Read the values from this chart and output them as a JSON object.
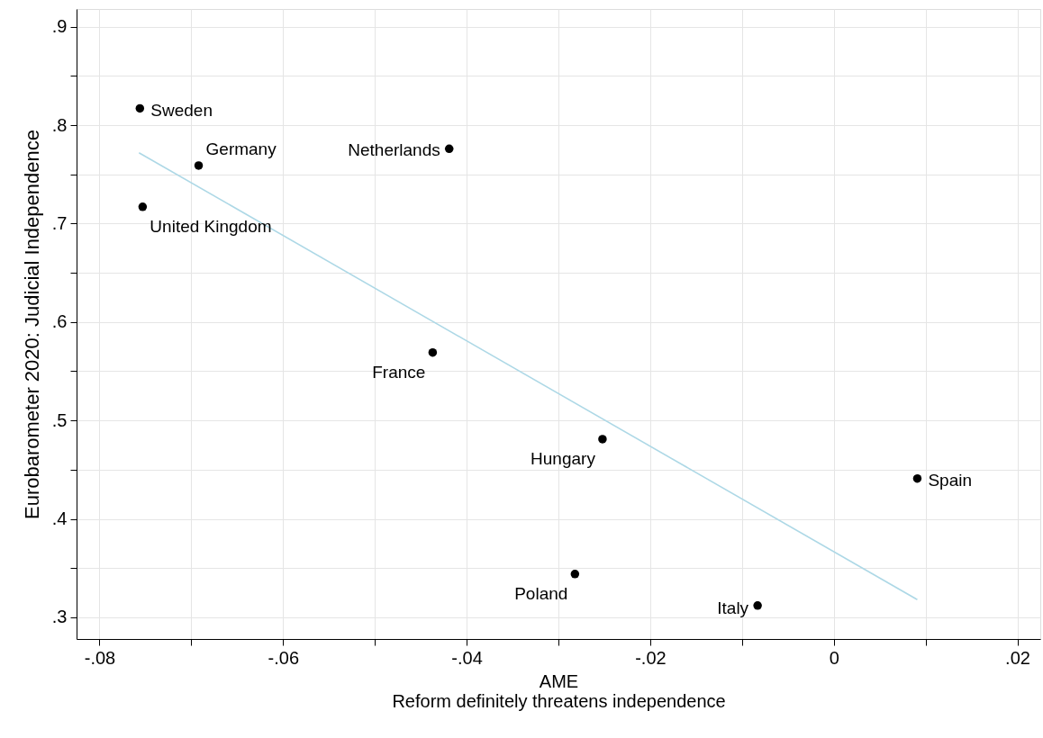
{
  "chart_data": {
    "type": "scatter",
    "xlabel": "AME\nReform definitely threatens independence",
    "ylabel": "Eurobarometer 2020: Judicial Independence",
    "series": [
      {
        "marker": "circle",
        "color": "#000000",
        "x": [
          -0.0756,
          -0.0692,
          -0.0753,
          -0.0419,
          -0.0437,
          -0.0252,
          0.0091,
          -0.0282,
          -0.0083
        ],
        "values": [
          0.817,
          0.759,
          0.717,
          0.776,
          0.569,
          0.481,
          0.441,
          0.344,
          0.312
        ]
      },
      {
        "type": "line",
        "marker": "none",
        "line_style": "solid",
        "color": "#add8e6",
        "x": [
          -0.0757,
          0.0091
        ],
        "values": [
          0.772,
          0.318
        ]
      }
    ],
    "annotations": [
      {
        "text": "Sweden",
        "x": -0.0756,
        "y": 0.817
      },
      {
        "text": "Germany",
        "x": -0.0692,
        "y": 0.759
      },
      {
        "text": "United Kingdom",
        "x": -0.0753,
        "y": 0.717
      },
      {
        "text": "Netherlands",
        "x": -0.0419,
        "y": 0.776
      },
      {
        "text": "France",
        "x": -0.0437,
        "y": 0.569
      },
      {
        "text": "Hungary",
        "x": -0.0252,
        "y": 0.481
      },
      {
        "text": "Spain",
        "x": 0.0091,
        "y": 0.441
      },
      {
        "text": "Poland",
        "x": -0.0282,
        "y": 0.344
      },
      {
        "text": "Italy",
        "x": -0.0083,
        "y": 0.312
      }
    ],
    "xlim": [
      -0.0825,
      0.0225
    ],
    "ylim": [
      0.278,
      0.918
    ],
    "xticks": [
      {
        "value": -0.08,
        "label": "-.08"
      },
      {
        "value": -0.07,
        "label": null
      },
      {
        "value": -0.06,
        "label": "-.06"
      },
      {
        "value": -0.05,
        "label": null
      },
      {
        "value": -0.04,
        "label": "-.04"
      },
      {
        "value": -0.03,
        "label": null
      },
      {
        "value": -0.02,
        "label": "-.02"
      },
      {
        "value": -0.01,
        "label": null
      },
      0,
      {
        "value": 0.01,
        "label": null
      },
      {
        "value": 0.02,
        "label": ".02"
      }
    ],
    "yticks": [
      {
        "value": 0.3,
        "label": ".3"
      },
      {
        "value": 0.35,
        "label": null
      },
      {
        "value": 0.4,
        "label": ".4"
      },
      {
        "value": 0.45,
        "label": null
      },
      {
        "value": 0.5,
        "label": ".5"
      },
      {
        "value": 0.55,
        "label": null
      },
      {
        "value": 0.6,
        "label": ".6"
      },
      {
        "value": 0.65,
        "label": null
      },
      {
        "value": 0.7,
        "label": ".7"
      },
      {
        "value": 0.75,
        "label": null
      },
      {
        "value": 0.8,
        "label": ".8"
      },
      {
        "value": 0.85,
        "label": null
      },
      {
        "value": 0.9,
        "label": ".9"
      }
    ],
    "grid": true
  }
}
